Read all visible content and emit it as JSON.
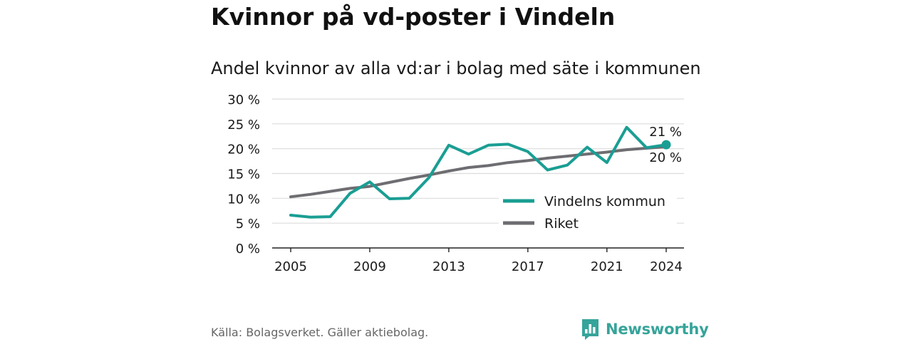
{
  "header": {
    "title": "Kvinnor på vd-poster i Vindeln",
    "subtitle": "Andel kvinnor av alla vd:ar i bolag med säte i kommunen"
  },
  "footer": {
    "source": "Källa: Bolagsverket. Gäller aktiebolag.",
    "brand": "Newsworthy",
    "brand_icon": "bar-chart-icon"
  },
  "chart_data": {
    "type": "line",
    "title": "Kvinnor på vd-poster i Vindeln",
    "subtitle": "Andel kvinnor av alla vd:ar i bolag med säte i kommunen",
    "x": [
      2005,
      2006,
      2007,
      2008,
      2009,
      2010,
      2011,
      2012,
      2013,
      2014,
      2015,
      2016,
      2017,
      2018,
      2019,
      2020,
      2021,
      2022,
      2023,
      2024
    ],
    "ylim": [
      0,
      30
    ],
    "yticks": [
      0,
      5,
      10,
      15,
      20,
      25,
      30
    ],
    "ytick_labels": [
      "0 %",
      "5 %",
      "10 %",
      "15 %",
      "20 %",
      "25 %",
      "30 %"
    ],
    "xticks": [
      2005,
      2009,
      2013,
      2017,
      2021,
      2024
    ],
    "xtick_labels": [
      "2005",
      "2009",
      "2013",
      "2017",
      "2021",
      "2024"
    ],
    "grid": true,
    "legend_position": "bottom-right",
    "series": [
      {
        "name": "Vindelns kommun",
        "color": "#1a9e93",
        "values": [
          6.6,
          6.2,
          6.3,
          11.0,
          13.3,
          9.9,
          10.0,
          14.2,
          20.7,
          18.9,
          20.7,
          20.9,
          19.4,
          15.7,
          16.7,
          20.3,
          17.2,
          24.3,
          20.2,
          20.8
        ],
        "end_label": "21 %"
      },
      {
        "name": "Riket",
        "color": "#6e6d72",
        "values": [
          10.3,
          10.8,
          11.4,
          12.0,
          12.4,
          13.2,
          14.0,
          14.7,
          15.5,
          16.2,
          16.6,
          17.2,
          17.6,
          18.1,
          18.5,
          18.9,
          19.3,
          19.8,
          20.1,
          20.4
        ],
        "end_label": "20 %"
      }
    ]
  }
}
